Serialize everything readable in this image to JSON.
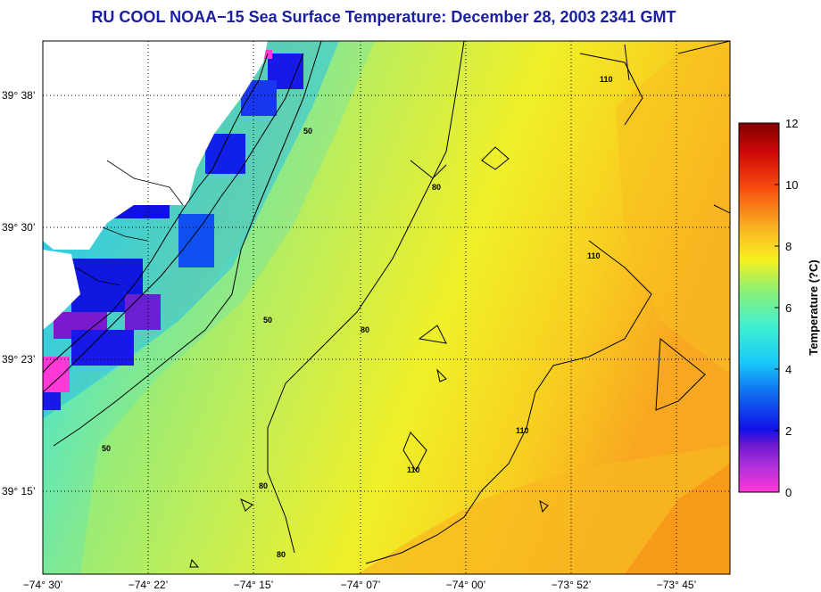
{
  "title": "RU COOL  NOAA−15  Sea Surface Temperature:  December 28, 2003 2341 GMT",
  "map": {
    "lat_ticks": [
      "39° 38’",
      "39° 30’",
      "39° 23’",
      "39° 15’"
    ],
    "lon_ticks": [
      "−74° 30’",
      "−74° 22’",
      "−74° 15’",
      "−74° 07’",
      "−74° 00’",
      "−73° 52’",
      "−73° 45’"
    ],
    "contour_labels": [
      "50",
      "50",
      "50",
      "80",
      "80",
      "80",
      "80",
      "110",
      "110",
      "110",
      "110"
    ]
  },
  "colorbar": {
    "label": "Temperature (?C)",
    "ticks": [
      "0",
      "2",
      "4",
      "6",
      "8",
      "10",
      "12"
    ],
    "range": [
      0,
      12
    ],
    "colors": [
      "#ff38d8",
      "#7a1ad0",
      "#1010e8",
      "#18b8f8",
      "#30f0e0",
      "#a0f060",
      "#f8f020",
      "#f8a020",
      "#f83010",
      "#800000"
    ]
  }
}
